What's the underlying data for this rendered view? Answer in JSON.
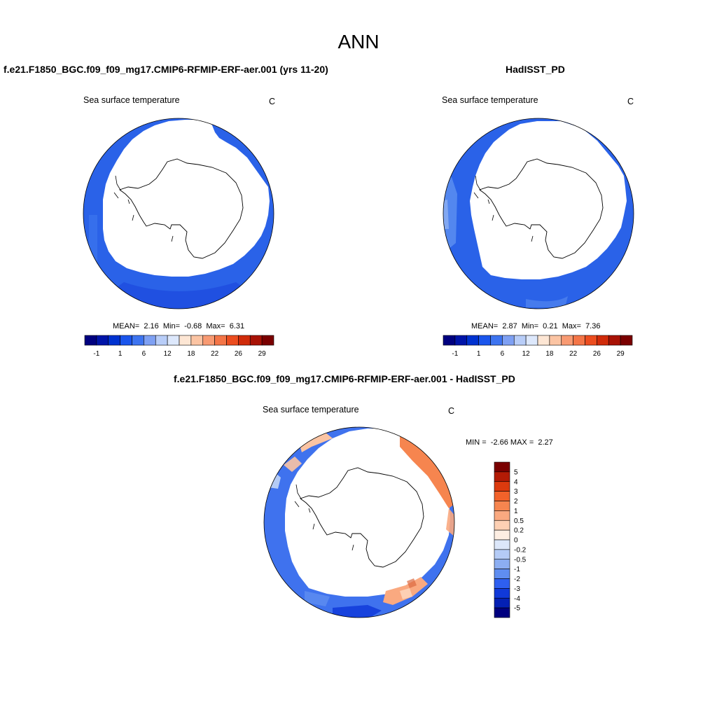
{
  "title": "ANN",
  "panels": {
    "model": {
      "case_title": "f.e21.F1850_BGC.f09_f09_mg17.CMIP6-RFMIP-ERF-aer.001 (yrs 11-20)",
      "variable": "Sea surface temperature",
      "units": "C",
      "stats": {
        "mean_label": "MEAN=",
        "mean": "2.16",
        "min_label": "Min=",
        "min": "-0.68",
        "max_label": "Max=",
        "max": "6.31"
      }
    },
    "obs": {
      "case_title": "HadISST_PD",
      "variable": "Sea surface temperature",
      "units": "C",
      "stats": {
        "mean_label": "MEAN=",
        "mean": "2.87",
        "min_label": "Min=",
        "min": "0.21",
        "max_label": "Max=",
        "max": "7.36"
      }
    },
    "diff": {
      "case_title": "f.e21.F1850_BGC.f09_f09_mg17.CMIP6-RFMIP-ERF-aer.001 - HadISST_PD",
      "variable": "Sea surface temperature",
      "units": "C",
      "stats": {
        "min_label": "MIN =",
        "min": "-2.66",
        "max_label": "MAX =",
        "max": "2.27"
      }
    }
  },
  "colorbars": {
    "absolute": {
      "colors": [
        "#00007f",
        "#0014a8",
        "#0032d0",
        "#1a55ec",
        "#3d74f0",
        "#7ea0f3",
        "#b8cdf8",
        "#dde8fc",
        "#fde6d4",
        "#fbc4a3",
        "#f89a72",
        "#f47547",
        "#ec4d1f",
        "#d02b0a",
        "#a81205",
        "#7a0000"
      ],
      "tick_labels": [
        "-1",
        "1",
        "6",
        "12",
        "18",
        "22",
        "26",
        "29"
      ]
    },
    "difference": {
      "colors": [
        "#7a0000",
        "#b31b05",
        "#dc3a0e",
        "#f2622a",
        "#f6854f",
        "#faa980",
        "#fdd0b4",
        "#fdeee3",
        "#dce7fa",
        "#b4cbf6",
        "#8caef2",
        "#5f8df0",
        "#2e5ff0",
        "#1039d9",
        "#0420b4",
        "#00007f"
      ],
      "tick_labels": [
        "5",
        "4",
        "3",
        "2",
        "1",
        "0.5",
        "0.2",
        "0",
        "-0.2",
        "-0.5",
        "-1",
        "-2",
        "-3",
        "-4",
        "-5"
      ]
    }
  }
}
